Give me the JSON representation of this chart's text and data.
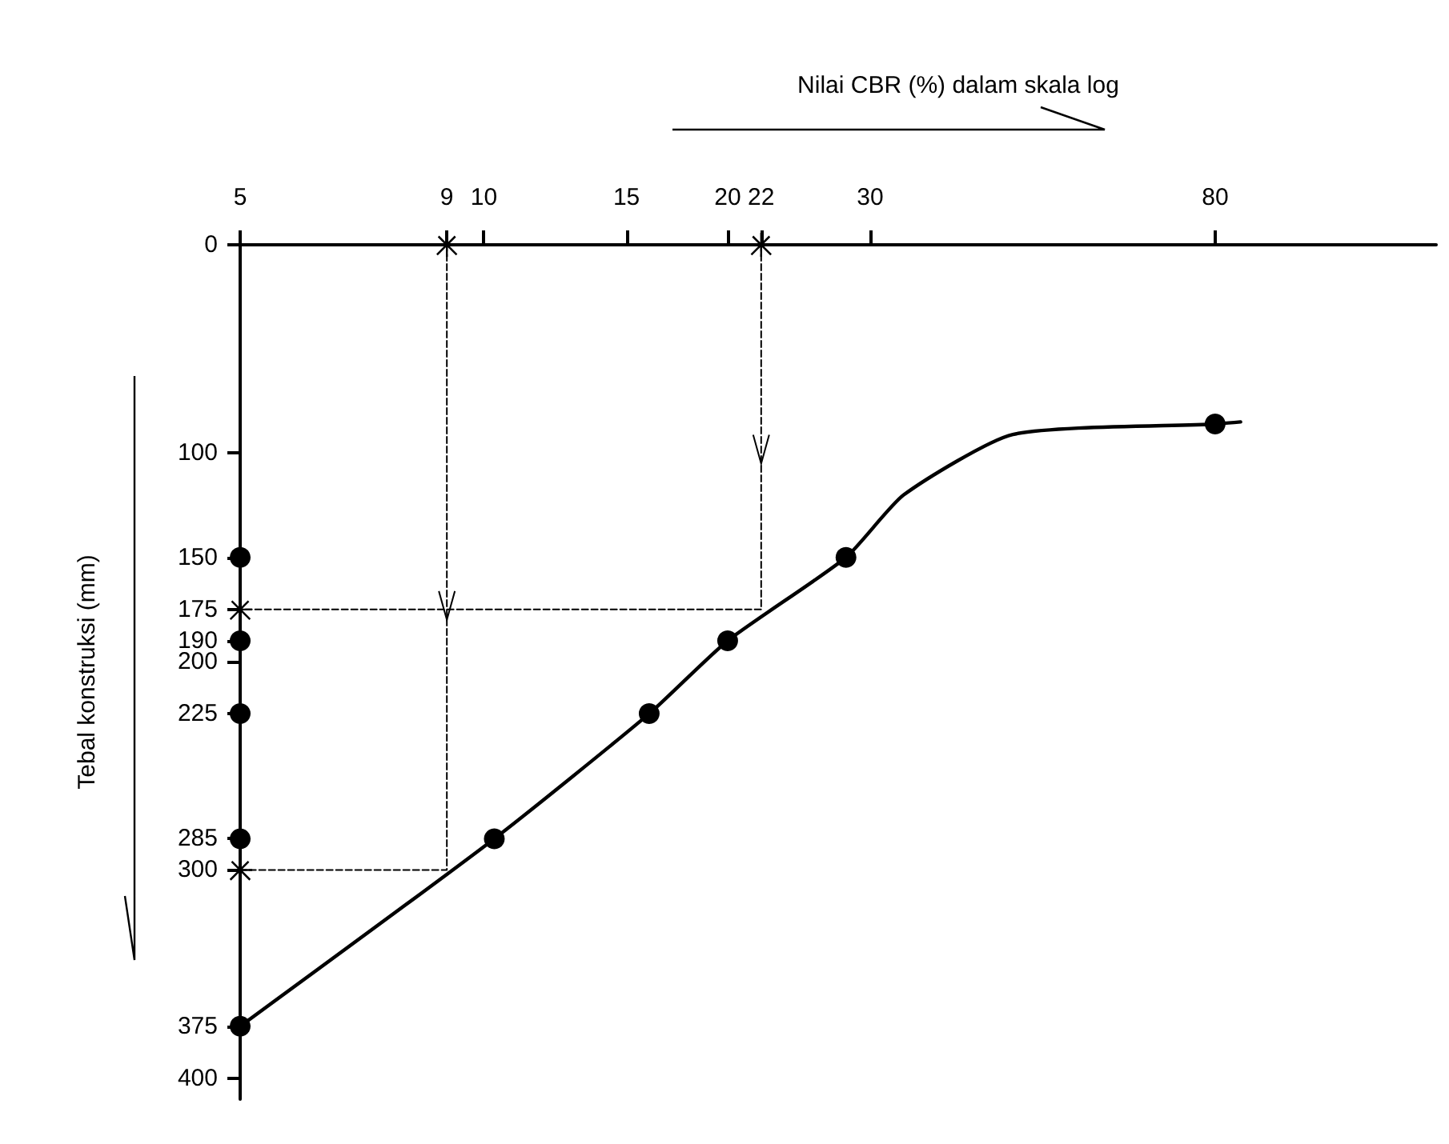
{
  "chart_data": {
    "type": "line",
    "xlabel": "Nilai CBR (%) dalam skala log",
    "ylabel": "Tebal konstruksi (mm)",
    "log": "x",
    "grid": false,
    "xlim": [
      5,
      150
    ],
    "xticks": [
      5,
      9,
      10,
      15,
      20,
      22,
      30,
      80
    ],
    "ylim": [
      410,
      0
    ],
    "yticks": [
      0,
      100,
      150,
      175,
      190,
      200,
      225,
      285,
      300,
      375,
      400
    ],
    "series": [
      {
        "color": "#000000",
        "marker": "none",
        "line_style": "solid",
        "x": [
          5,
          10.3,
          16,
          20,
          28,
          33,
          45,
          80,
          86
        ],
        "values": [
          375,
          285,
          225,
          190,
          150,
          120,
          91,
          86,
          85
        ]
      },
      {
        "type": "scatter",
        "color": "#000000",
        "marker": "circle",
        "x": [
          5,
          5,
          5,
          5,
          5,
          10.3,
          16,
          20,
          28,
          80
        ],
        "values": [
          150,
          190,
          225,
          285,
          375,
          285,
          225,
          190,
          150,
          86
        ]
      },
      {
        "color": "#000000",
        "marker": "none",
        "line_style": "dashed",
        "x": [
          22,
          22,
          5
        ],
        "values": [
          0,
          175,
          175
        ]
      },
      {
        "color": "#000000",
        "marker": "none",
        "line_style": "dashed",
        "x": [
          9,
          9,
          5
        ],
        "values": [
          0,
          300,
          300
        ]
      },
      {
        "type": "scatter",
        "color": "#000000",
        "marker": "cross",
        "x": [
          9,
          22,
          5,
          5
        ],
        "values": [
          0,
          0,
          175,
          300
        ]
      }
    ]
  }
}
